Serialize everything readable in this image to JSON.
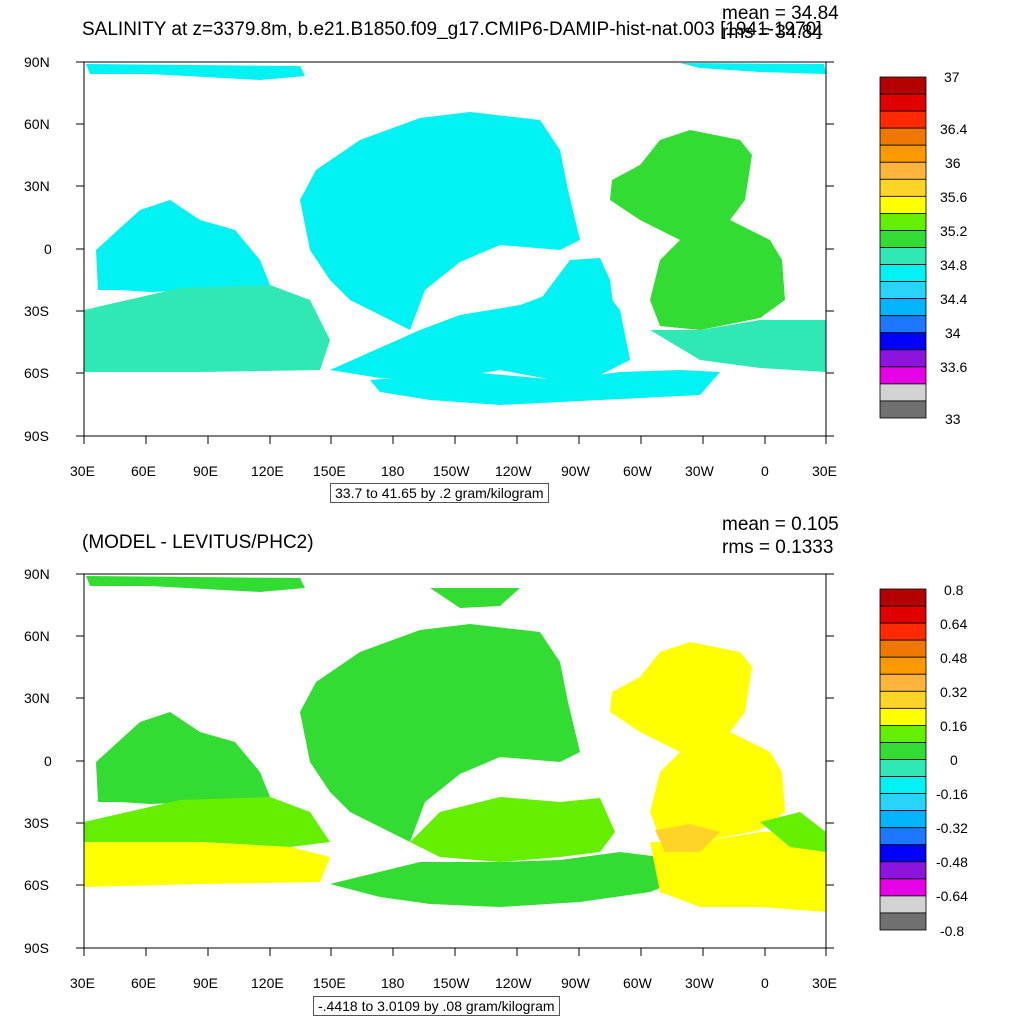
{
  "top": {
    "title": "SALINITY at z=3379.8m, b.e21.B1850.f09_g17.CMIP6-DAMIP-hist-nat.003 [1941-1970]",
    "mean": "mean = 34.84",
    "rms": "rms = 34.84",
    "contour_info": "33.7 to 41.65 by .2 gram/kilogram",
    "lat_labels": [
      "90N",
      "60N",
      "30N",
      "0",
      "30S",
      "60S",
      "90S"
    ],
    "lon_labels": [
      "30E",
      "60E",
      "90E",
      "120E",
      "150E",
      "180",
      "150W",
      "120W",
      "90W",
      "60W",
      "30W",
      "0",
      "30E"
    ],
    "colorbar_labels": [
      "37",
      "36.4",
      "36",
      "35.6",
      "35.2",
      "34.8",
      "34.4",
      "34",
      "33.6",
      "33"
    ],
    "colorbar_colors": [
      "#b40000",
      "#e00000",
      "#ff2a00",
      "#f07800",
      "#ff9900",
      "#ffb43c",
      "#ffd328",
      "#ffff00",
      "#64ee00",
      "#32dc32",
      "#2fe8b4",
      "#00f2f2",
      "#28d4ff",
      "#00b4ff",
      "#1e78ff",
      "#0000ff",
      "#8c14dc",
      "#e600e6",
      "#d2d2d2",
      "#707070"
    ]
  },
  "bottom": {
    "title": "(MODEL - LEVITUS/PHC2)",
    "mean": "mean = 0.105",
    "rms": "rms = 0.1333",
    "contour_info": "-.4418 to 3.0109 by .08 gram/kilogram",
    "lat_labels": [
      "90N",
      "60N",
      "30N",
      "0",
      "30S",
      "60S",
      "90S"
    ],
    "lon_labels": [
      "30E",
      "60E",
      "90E",
      "120E",
      "150E",
      "180",
      "150W",
      "120W",
      "90W",
      "60W",
      "30W",
      "0",
      "30E"
    ],
    "colorbar_labels": [
      "0.8",
      "0.64",
      "0.48",
      "0.32",
      "0.16",
      "0",
      "-0.16",
      "-0.32",
      "-0.48",
      "-0.64",
      "-0.8"
    ],
    "colorbar_colors": [
      "#b40000",
      "#e00000",
      "#ff2a00",
      "#f07800",
      "#ff9900",
      "#ffb43c",
      "#ffd328",
      "#ffff00",
      "#64ee00",
      "#32dc32",
      "#2fe8b4",
      "#00f2f2",
      "#28d4ff",
      "#00b4ff",
      "#1e78ff",
      "#0000ff",
      "#8c14dc",
      "#e600e6",
      "#d2d2d2",
      "#707070"
    ]
  },
  "colors": {
    "cyan_field": "#00f2f2",
    "teal_field": "#2fe8b4",
    "green_field": "#32dc32",
    "lightgreen_field": "#64ee00",
    "yellow_field": "#ffff00",
    "gold_field": "#ffd328"
  }
}
